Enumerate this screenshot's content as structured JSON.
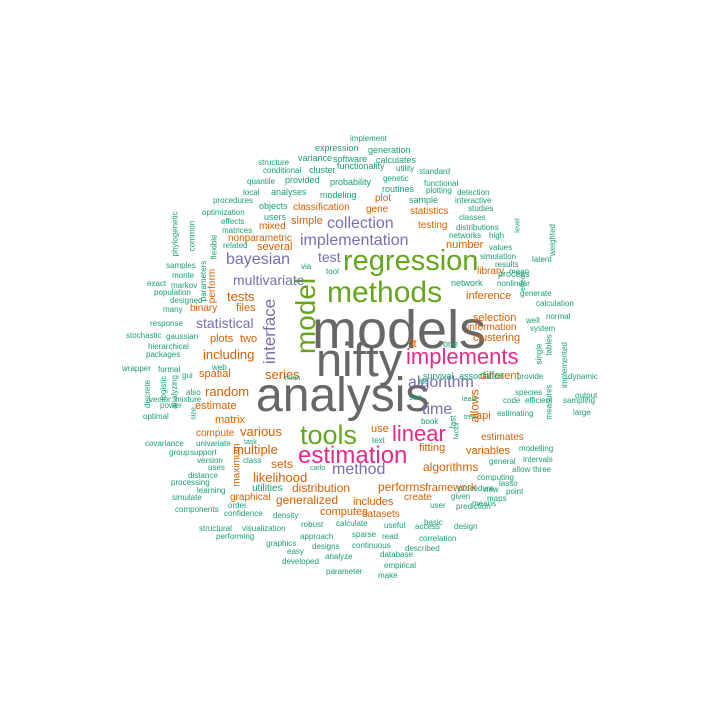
{
  "palette": {
    "gray": "#676767",
    "green": "#66a61e",
    "pink": "#e7298a",
    "purple": "#7570b3",
    "orange": "#d95f02",
    "teal": "#1b9e77"
  },
  "words": [
    {
      "text": "models",
      "color": "gray"
    },
    {
      "text": "nifty",
      "color": "gray"
    },
    {
      "text": "analysis",
      "color": "gray"
    },
    {
      "text": "methods",
      "color": "green"
    },
    {
      "text": "regression",
      "color": "green"
    },
    {
      "text": "model",
      "color": "green"
    },
    {
      "text": "tools",
      "color": "green"
    },
    {
      "text": "estimation",
      "color": "pink"
    },
    {
      "text": "linear",
      "color": "pink"
    },
    {
      "text": "implements",
      "color": "pink"
    },
    {
      "text": "implementation",
      "color": "purple"
    },
    {
      "text": "collection",
      "color": "purple"
    },
    {
      "text": "bayesian",
      "color": "purple"
    },
    {
      "text": "multivariate",
      "color": "purple"
    },
    {
      "text": "interface",
      "color": "purple"
    },
    {
      "text": "algorithm",
      "color": "purple"
    },
    {
      "text": "time",
      "color": "purple"
    },
    {
      "text": "method",
      "color": "purple"
    },
    {
      "text": "statistical",
      "color": "purple"
    },
    {
      "text": "test",
      "color": "purple"
    },
    {
      "text": "tests",
      "color": "orange"
    },
    {
      "text": "series",
      "color": "orange"
    },
    {
      "text": "including",
      "color": "orange"
    },
    {
      "text": "random",
      "color": "orange"
    },
    {
      "text": "various",
      "color": "orange"
    },
    {
      "text": "multiple",
      "color": "orange"
    },
    {
      "text": "likelihood",
      "color": "orange"
    },
    {
      "text": "sets",
      "color": "orange"
    },
    {
      "text": "generalized",
      "color": "orange"
    },
    {
      "text": "distribution",
      "color": "orange"
    },
    {
      "text": "performs",
      "color": "orange"
    },
    {
      "text": "algorithms",
      "color": "orange"
    },
    {
      "text": "selection",
      "color": "orange"
    },
    {
      "text": "inference",
      "color": "orange"
    },
    {
      "text": "clustering",
      "color": "orange"
    },
    {
      "text": "allows",
      "color": "orange"
    },
    {
      "text": "several",
      "color": "orange"
    },
    {
      "text": "simple",
      "color": "orange"
    },
    {
      "text": "number",
      "color": "orange"
    },
    {
      "text": "two",
      "color": "orange"
    },
    {
      "text": "plots",
      "color": "orange"
    },
    {
      "text": "spatial",
      "color": "orange"
    },
    {
      "text": "estimate",
      "color": "orange"
    },
    {
      "text": "matrix",
      "color": "orange"
    },
    {
      "text": "files",
      "color": "orange"
    },
    {
      "text": "binary",
      "color": "orange"
    },
    {
      "text": "perform",
      "color": "orange"
    },
    {
      "text": "nonparametric",
      "color": "orange"
    },
    {
      "text": "mixed",
      "color": "orange"
    },
    {
      "text": "classification",
      "color": "orange"
    },
    {
      "text": "statistics",
      "color": "orange"
    },
    {
      "text": "testing",
      "color": "orange"
    },
    {
      "text": "plot",
      "color": "orange"
    },
    {
      "text": "gene",
      "color": "orange"
    },
    {
      "text": "use",
      "color": "orange"
    },
    {
      "text": "fit",
      "color": "orange"
    },
    {
      "text": "api",
      "color": "orange"
    },
    {
      "text": "fitting",
      "color": "orange"
    },
    {
      "text": "different",
      "color": "orange"
    },
    {
      "text": "variables",
      "color": "orange"
    },
    {
      "text": "framework",
      "color": "orange"
    },
    {
      "text": "includes",
      "color": "orange"
    },
    {
      "text": "computes",
      "color": "orange"
    },
    {
      "text": "datasets",
      "color": "orange"
    },
    {
      "text": "library",
      "color": "orange"
    },
    {
      "text": "information",
      "color": "orange"
    },
    {
      "text": "estimates",
      "color": "orange"
    },
    {
      "text": "compute",
      "color": "orange"
    },
    {
      "text": "graphical",
      "color": "orange"
    },
    {
      "text": "maximum",
      "color": "orange"
    },
    {
      "text": "create",
      "color": "orange"
    },
    {
      "text": "utilities",
      "color": "teal"
    },
    {
      "text": "network",
      "color": "teal"
    },
    {
      "text": "one",
      "color": "teal"
    },
    {
      "text": "association",
      "color": "teal"
    },
    {
      "text": "survival",
      "color": "teal"
    },
    {
      "text": "process",
      "color": "teal"
    },
    {
      "text": "sample",
      "color": "teal"
    },
    {
      "text": "routines",
      "color": "teal"
    },
    {
      "text": "probability",
      "color": "teal"
    },
    {
      "text": "modeling",
      "color": "teal"
    },
    {
      "text": "analyses",
      "color": "teal"
    },
    {
      "text": "provided",
      "color": "teal"
    },
    {
      "text": "objects",
      "color": "teal"
    },
    {
      "text": "users",
      "color": "teal"
    },
    {
      "text": "cluster",
      "color": "teal"
    },
    {
      "text": "functionality",
      "color": "teal"
    },
    {
      "text": "software",
      "color": "teal"
    },
    {
      "text": "variance",
      "color": "teal"
    },
    {
      "text": "expression",
      "color": "teal"
    },
    {
      "text": "generation",
      "color": "teal"
    },
    {
      "text": "calculates",
      "color": "teal"
    },
    {
      "text": "implement",
      "color": "teal"
    },
    {
      "text": "structure",
      "color": "teal"
    },
    {
      "text": "conditional",
      "color": "teal"
    },
    {
      "text": "quantile",
      "color": "teal"
    },
    {
      "text": "procedures",
      "color": "teal"
    },
    {
      "text": "optimization",
      "color": "teal"
    },
    {
      "text": "local",
      "color": "teal"
    },
    {
      "text": "effects",
      "color": "teal"
    },
    {
      "text": "matrices",
      "color": "teal"
    },
    {
      "text": "related",
      "color": "teal"
    },
    {
      "text": "standard",
      "color": "teal"
    },
    {
      "text": "utility",
      "color": "teal"
    },
    {
      "text": "genetic",
      "color": "teal"
    },
    {
      "text": "functional",
      "color": "teal"
    },
    {
      "text": "plotting",
      "color": "teal"
    },
    {
      "text": "detection",
      "color": "teal"
    },
    {
      "text": "interactive",
      "color": "teal"
    },
    {
      "text": "studies",
      "color": "teal"
    },
    {
      "text": "classes",
      "color": "teal"
    },
    {
      "text": "distributions",
      "color": "teal"
    },
    {
      "text": "networks",
      "color": "teal"
    },
    {
      "text": "high",
      "color": "teal"
    },
    {
      "text": "values",
      "color": "teal"
    },
    {
      "text": "simulation",
      "color": "teal"
    },
    {
      "text": "results",
      "color": "teal"
    },
    {
      "text": "mean",
      "color": "teal"
    },
    {
      "text": "nonlinear",
      "color": "teal"
    },
    {
      "text": "generate",
      "color": "teal"
    },
    {
      "text": "calculation",
      "color": "teal"
    },
    {
      "text": "normal",
      "color": "teal"
    },
    {
      "text": "system",
      "color": "teal"
    },
    {
      "text": "well",
      "color": "teal"
    },
    {
      "text": "provide",
      "color": "teal"
    },
    {
      "text": "species",
      "color": "teal"
    },
    {
      "text": "dynamic",
      "color": "teal"
    },
    {
      "text": "output",
      "color": "teal"
    },
    {
      "text": "large",
      "color": "teal"
    },
    {
      "text": "sampling",
      "color": "teal"
    },
    {
      "text": "efficient",
      "color": "teal"
    },
    {
      "text": "code",
      "color": "teal"
    },
    {
      "text": "estimating",
      "color": "teal"
    },
    {
      "text": "modelling",
      "color": "teal"
    },
    {
      "text": "general",
      "color": "teal"
    },
    {
      "text": "intervals",
      "color": "teal"
    },
    {
      "text": "three",
      "color": "teal"
    },
    {
      "text": "allow",
      "color": "teal"
    },
    {
      "text": "new",
      "color": "teal"
    },
    {
      "text": "lasso",
      "color": "teal"
    },
    {
      "text": "computing",
      "color": "teal"
    },
    {
      "text": "point",
      "color": "teal"
    },
    {
      "text": "procedure",
      "color": "teal"
    },
    {
      "text": "prediction",
      "color": "teal"
    },
    {
      "text": "design",
      "color": "teal"
    },
    {
      "text": "given",
      "color": "teal"
    },
    {
      "text": "means",
      "color": "teal"
    },
    {
      "text": "basic",
      "color": "teal"
    },
    {
      "text": "user",
      "color": "teal"
    },
    {
      "text": "access",
      "color": "teal"
    },
    {
      "text": "correlation",
      "color": "teal"
    },
    {
      "text": "described",
      "color": "teal"
    },
    {
      "text": "read",
      "color": "teal"
    },
    {
      "text": "useful",
      "color": "teal"
    },
    {
      "text": "continuous",
      "color": "teal"
    },
    {
      "text": "sparse",
      "color": "teal"
    },
    {
      "text": "calculate",
      "color": "teal"
    },
    {
      "text": "approach",
      "color": "teal"
    },
    {
      "text": "robust",
      "color": "teal"
    },
    {
      "text": "designs",
      "color": "teal"
    },
    {
      "text": "analyze",
      "color": "teal"
    },
    {
      "text": "database",
      "color": "teal"
    },
    {
      "text": "empirical",
      "color": "teal"
    },
    {
      "text": "make",
      "color": "teal"
    },
    {
      "text": "parameter",
      "color": "teal"
    },
    {
      "text": "developed",
      "color": "teal"
    },
    {
      "text": "easy",
      "color": "teal"
    },
    {
      "text": "graphics",
      "color": "teal"
    },
    {
      "text": "visualization",
      "color": "teal"
    },
    {
      "text": "density",
      "color": "teal"
    },
    {
      "text": "performing",
      "color": "teal"
    },
    {
      "text": "structural",
      "color": "teal"
    },
    {
      "text": "confidence",
      "color": "teal"
    },
    {
      "text": "order",
      "color": "teal"
    },
    {
      "text": "components",
      "color": "teal"
    },
    {
      "text": "simulate",
      "color": "teal"
    },
    {
      "text": "learning",
      "color": "teal"
    },
    {
      "text": "processing",
      "color": "teal"
    },
    {
      "text": "distance",
      "color": "teal"
    },
    {
      "text": "uses",
      "color": "teal"
    },
    {
      "text": "version",
      "color": "teal"
    },
    {
      "text": "univariate",
      "color": "teal"
    },
    {
      "text": "group",
      "color": "teal"
    },
    {
      "text": "support",
      "color": "teal"
    },
    {
      "text": "covariance",
      "color": "teal"
    },
    {
      "text": "optimal",
      "color": "teal"
    },
    {
      "text": "power",
      "color": "teal"
    },
    {
      "text": "vector",
      "color": "teal"
    },
    {
      "text": "mixture",
      "color": "teal"
    },
    {
      "text": "class",
      "color": "teal"
    },
    {
      "text": "task",
      "color": "teal"
    },
    {
      "text": "carlo",
      "color": "teal"
    },
    {
      "text": "text",
      "color": "teal"
    },
    {
      "text": "book",
      "color": "teal"
    },
    {
      "text": "see",
      "color": "teal"
    },
    {
      "text": "least",
      "color": "teal"
    },
    {
      "text": "file",
      "color": "teal"
    },
    {
      "text": "wrapper",
      "color": "teal"
    },
    {
      "text": "formal",
      "color": "teal"
    },
    {
      "text": "gui",
      "color": "teal"
    },
    {
      "text": "web",
      "color": "teal"
    },
    {
      "text": "also",
      "color": "teal"
    },
    {
      "text": "stochastic",
      "color": "teal"
    },
    {
      "text": "gaussian",
      "color": "teal"
    },
    {
      "text": "hierarchical",
      "color": "teal"
    },
    {
      "text": "packages",
      "color": "teal"
    },
    {
      "text": "response",
      "color": "teal"
    },
    {
      "text": "many",
      "color": "teal"
    },
    {
      "text": "designed",
      "color": "teal"
    },
    {
      "text": "population",
      "color": "teal"
    },
    {
      "text": "exact",
      "color": "teal"
    },
    {
      "text": "markov",
      "color": "teal"
    },
    {
      "text": "monte",
      "color": "teal"
    },
    {
      "text": "samples",
      "color": "teal"
    },
    {
      "text": "main",
      "color": "teal"
    },
    {
      "text": "via",
      "color": "teal"
    },
    {
      "text": "tool",
      "color": "teal"
    },
    {
      "text": "phylogenetic",
      "color": "teal"
    },
    {
      "text": "common",
      "color": "teal"
    },
    {
      "text": "flexible",
      "color": "teal"
    },
    {
      "text": "parameters",
      "color": "teal"
    },
    {
      "text": "discrete",
      "color": "teal"
    },
    {
      "text": "logistic",
      "color": "teal"
    },
    {
      "text": "analyzing",
      "color": "teal"
    },
    {
      "text": "size",
      "color": "teal"
    },
    {
      "text": "latent",
      "color": "teal"
    },
    {
      "text": "weighted",
      "color": "teal"
    },
    {
      "text": "tables",
      "color": "teal"
    },
    {
      "text": "single",
      "color": "teal"
    },
    {
      "text": "implemented",
      "color": "teal"
    },
    {
      "text": "effect",
      "color": "teal"
    },
    {
      "text": "level",
      "color": "teal"
    },
    {
      "text": "measures",
      "color": "teal"
    },
    {
      "text": "factor",
      "color": "teal"
    },
    {
      "text": "tree",
      "color": "teal"
    },
    {
      "text": "maps",
      "color": "teal"
    },
    {
      "text": "fast",
      "color": "teal"
    }
  ]
}
